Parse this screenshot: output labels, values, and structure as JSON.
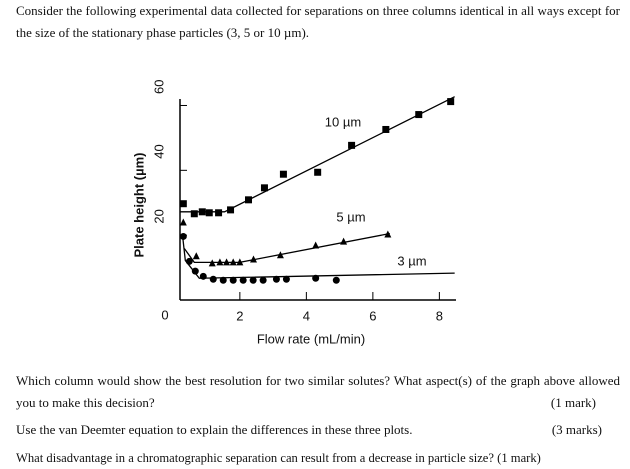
{
  "intro": "Consider the following experimental data collected for separations on three columns identical in all ways except for the size of the stationary phase particles (3, 5 or 10 µm).",
  "chart_data": {
    "type": "scatter",
    "x_label": "Flow rate (mL/min)",
    "y_label": "Plate height (µm)",
    "xlim": [
      0.2,
      8.5
    ],
    "ylim": [
      0,
      62
    ],
    "xticks": [
      2,
      4,
      6,
      8
    ],
    "yticks": [
      0,
      20,
      40,
      60
    ],
    "color": "#000000",
    "series": [
      {
        "name": "10 µm",
        "marker": "square",
        "x": [
          0.3,
          0.63,
          0.87,
          1.08,
          1.36,
          1.72,
          2.26,
          2.74,
          3.31,
          4.34,
          5.36,
          6.39,
          7.38,
          8.34
        ],
        "values": [
          29.7,
          26.6,
          27.2,
          26.9,
          26.9,
          27.8,
          30.9,
          34.6,
          38.8,
          39.4,
          47.7,
          52.6,
          57.2,
          61.2
        ],
        "curve_x": [
          0.2,
          0.63,
          1.54,
          8.46
        ],
        "curve_y": [
          27.2,
          27.2,
          27.2,
          62.7
        ]
      },
      {
        "name": "5 µm",
        "marker": "triangle",
        "x": [
          0.3,
          0.69,
          1.17,
          1.4,
          1.6,
          1.8,
          2.0,
          2.41,
          3.22,
          4.28,
          5.12,
          6.45
        ],
        "values": [
          23.9,
          13.5,
          11.3,
          11.6,
          11.6,
          11.6,
          11.6,
          12.5,
          13.8,
          16.8,
          18.0,
          20.2
        ],
        "curve_x": [
          0.33,
          0.63,
          1.99,
          6.51
        ],
        "curve_y": [
          15.9,
          11.6,
          11.6,
          20.5
        ]
      },
      {
        "name": "3 µm",
        "marker": "circle",
        "x": [
          0.3,
          0.48,
          0.66,
          0.9,
          1.2,
          1.5,
          1.8,
          2.1,
          2.4,
          2.7,
          3.1,
          3.4,
          4.28,
          4.9
        ],
        "values": [
          19.6,
          11.9,
          8.9,
          7.3,
          6.4,
          6.1,
          6.1,
          6.1,
          6.1,
          6.1,
          6.4,
          6.4,
          6.7,
          6.1
        ],
        "curve_x": [
          0.27,
          0.36,
          0.78,
          8.46
        ],
        "curve_y": [
          20.5,
          12.2,
          6.7,
          8.3
        ]
      }
    ]
  },
  "questions": [
    {
      "text": "Which column would show the best resolution for two similar solutes? What aspect(s) of the graph above allowed you to make this decision?",
      "marks": "(1 mark)"
    },
    {
      "text": "Use the van Deemter equation to explain the differences in these three plots.",
      "marks": "(3 marks)"
    },
    {
      "text": "What disadvantage in a chromatographic separation can result from a decrease in particle size?",
      "marks": "(1 mark)"
    }
  ]
}
